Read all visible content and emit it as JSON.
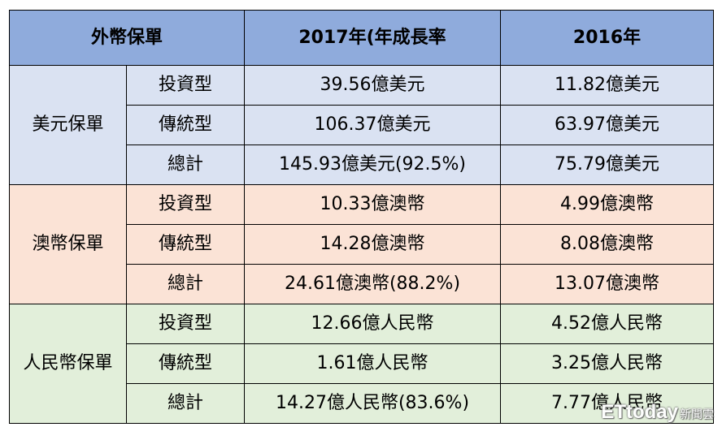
{
  "header": {
    "col1": "外幣保單",
    "col2": "2017年(年成長率",
    "col3": "2016年"
  },
  "groups": [
    {
      "name": "美元保單",
      "rows": [
        {
          "type": "投資型",
          "y2017": "39.56億美元",
          "y2016": "11.82億美元"
        },
        {
          "type": "傳統型",
          "y2017": "106.37億美元",
          "y2016": "63.97億美元"
        },
        {
          "type": "總計",
          "y2017": "145.93億美元(92.5%)",
          "y2016": "75.79億美元"
        }
      ]
    },
    {
      "name": "澳幣保單",
      "rows": [
        {
          "type": "投資型",
          "y2017": "10.33億澳幣",
          "y2016": "4.99億澳幣"
        },
        {
          "type": "傳統型",
          "y2017": "14.28億澳幣",
          "y2016": "8.08億澳幣"
        },
        {
          "type": "總計",
          "y2017": "24.61億澳幣(88.2%)",
          "y2016": "13.07億澳幣"
        }
      ]
    },
    {
      "name": "人民幣保單",
      "rows": [
        {
          "type": "投資型",
          "y2017": "12.66億人民幣",
          "y2016": "4.52億人民幣"
        },
        {
          "type": "傳統型",
          "y2017": "1.61億人民幣",
          "y2016": "3.25億人民幣"
        },
        {
          "type": "總計",
          "y2017": "14.27億人民幣(83.6%)",
          "y2016": "7.77億人民幣"
        }
      ]
    }
  ],
  "watermark": {
    "brand": "ETtoday",
    "sub": "新聞雲"
  }
}
